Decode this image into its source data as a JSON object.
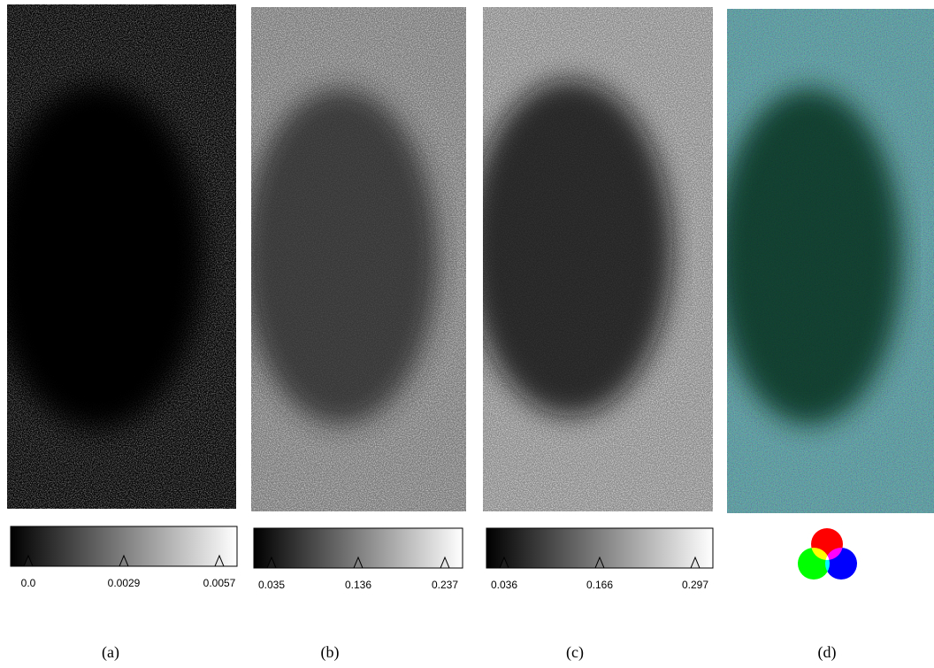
{
  "panels": [
    {
      "caption": "(a)",
      "colorbar": [
        "0.0",
        "0.0029",
        "0.0057"
      ]
    },
    {
      "caption": "(b)",
      "colorbar": [
        "0.035",
        "0.136",
        "0.237"
      ]
    },
    {
      "caption": "(c)",
      "colorbar": [
        "0.036",
        "0.166",
        "0.297"
      ]
    },
    {
      "caption": "(d)"
    }
  ]
}
